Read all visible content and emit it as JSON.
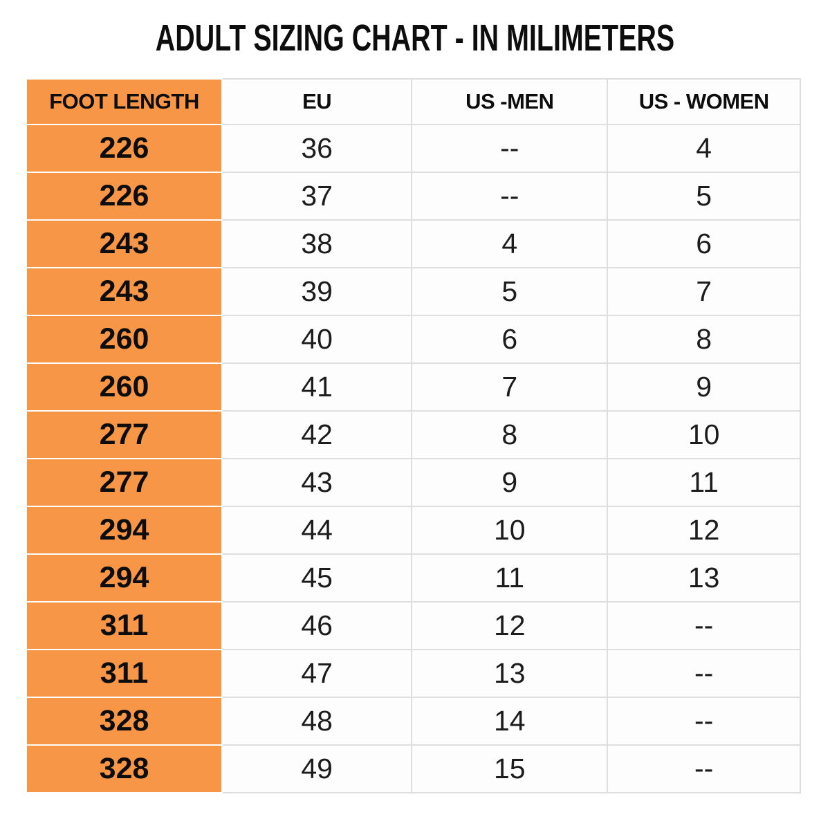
{
  "title": "ADULT SIZING CHART - IN MILIMETERS",
  "colors": {
    "accent_orange": "#F79646",
    "grid_border_gray": "#DEDEDE",
    "text_black": "#0D0D0D",
    "background": "#FFFFFF"
  },
  "chart_data": {
    "type": "table",
    "title": "ADULT SIZING CHART - IN MILIMETERS",
    "columns": [
      "FOOT LENGTH",
      "EU",
      "US -MEN",
      "US - WOMEN"
    ],
    "rows": [
      [
        "226",
        "36",
        "--",
        "4"
      ],
      [
        "226",
        "37",
        "--",
        "5"
      ],
      [
        "243",
        "38",
        "4",
        "6"
      ],
      [
        "243",
        "39",
        "5",
        "7"
      ],
      [
        "260",
        "40",
        "6",
        "8"
      ],
      [
        "260",
        "41",
        "7",
        "9"
      ],
      [
        "277",
        "42",
        "8",
        "10"
      ],
      [
        "277",
        "43",
        "9",
        "11"
      ],
      [
        "294",
        "44",
        "10",
        "12"
      ],
      [
        "294",
        "45",
        "11",
        "13"
      ],
      [
        "311",
        "46",
        "12",
        "--"
      ],
      [
        "311",
        "47",
        "13",
        "--"
      ],
      [
        "328",
        "48",
        "14",
        "--"
      ],
      [
        "328",
        "49",
        "15",
        "--"
      ]
    ],
    "layout": {
      "first_column_highlight": "orange",
      "grid": "on",
      "header_row": true
    }
  }
}
